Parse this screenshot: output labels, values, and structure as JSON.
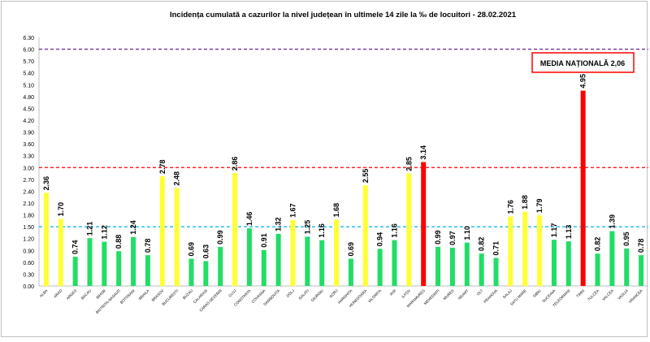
{
  "chart_data": {
    "type": "bar",
    "title": "Incidența cumulată a cazurilor la nivel județean în ultimele 14 zile la ‰ de locuitori - 28.02.2021",
    "xlabel": "",
    "ylabel": "",
    "ylim": [
      0,
      6.3
    ],
    "yticks": [
      "0.00",
      "0.30",
      "0.60",
      "0.90",
      "1.20",
      "1.50",
      "1.80",
      "2.10",
      "2.40",
      "2.70",
      "3.00",
      "3.30",
      "3.60",
      "3.90",
      "4.20",
      "4.50",
      "4.80",
      "5.10",
      "5.40",
      "5.70",
      "6.00",
      "6.30"
    ],
    "categories": [
      "ALBA",
      "ARAD",
      "ARGES",
      "BACAU",
      "BIHOR",
      "BISTRITA-NASAUD",
      "BOTOSANI",
      "BRAILA",
      "BRASOV",
      "BUCURESTI",
      "BUZAU",
      "CALARASI",
      "CARAS-SEVERIN",
      "CLUJ",
      "CONSTANTA",
      "COVASNA",
      "DAMBOVITA",
      "DOLJ",
      "GALATI",
      "GIURGIU",
      "GORJ",
      "HARGHITA",
      "HUNEDOARA",
      "IALOMITA",
      "IASI",
      "ILFOV",
      "MARAMURES",
      "MEHEDINTI",
      "MURES",
      "NEAMT",
      "OLT",
      "PRAHOVA",
      "SALAJ",
      "SATU MARE",
      "SIBIU",
      "SUCEAVA",
      "TELEORMAN",
      "TIMIS",
      "TULCEA",
      "VALCEA",
      "VASLUI",
      "VRANCEA"
    ],
    "values": [
      2.36,
      1.7,
      0.74,
      1.21,
      1.12,
      0.88,
      1.24,
      0.78,
      2.78,
      2.48,
      0.69,
      0.63,
      0.99,
      2.86,
      1.46,
      0.91,
      1.32,
      1.67,
      1.25,
      1.16,
      1.68,
      0.69,
      2.55,
      0.94,
      1.16,
      2.85,
      3.14,
      0.99,
      0.97,
      1.1,
      0.82,
      0.71,
      1.76,
      1.88,
      1.79,
      1.17,
      1.13,
      4.95,
      0.82,
      1.39,
      0.95,
      0.78
    ],
    "value_labels": [
      "2.36",
      "1.70",
      "0.74",
      "1.21",
      "1.12",
      "0.88",
      "1.24",
      "0.78",
      "2.78",
      "2.48",
      "0.69",
      "0.63",
      "0.99",
      "2.86",
      "1.46",
      "0.91",
      "1.32",
      "1.67",
      "1.25",
      "1.16",
      "1.68",
      "0.69",
      "2.55",
      "0.94",
      "1.16",
      "2.85",
      "3.14",
      "0.99",
      "0.97",
      "1.10",
      "0.82",
      "0.71",
      "1.76",
      "1.88",
      "1.79",
      "1.17",
      "1.13",
      "4.95",
      "0.82",
      "1.39",
      "0.95",
      "0.78"
    ],
    "thresholds": [
      {
        "value": 1.5,
        "color": "#00b0f0"
      },
      {
        "value": 3.0,
        "color": "#ff0000"
      },
      {
        "value": 6.0,
        "color": "#7030a0"
      }
    ],
    "color_rules": {
      "below_1_5": "#22dd66",
      "from_1_5_to_3": "#ffff33",
      "above_3": "#ff0000"
    },
    "annotation": "MEDIA NAȚIONALĂ 2,06",
    "annotation_border_color": "#ff0000",
    "grid": false,
    "legend": "none"
  }
}
